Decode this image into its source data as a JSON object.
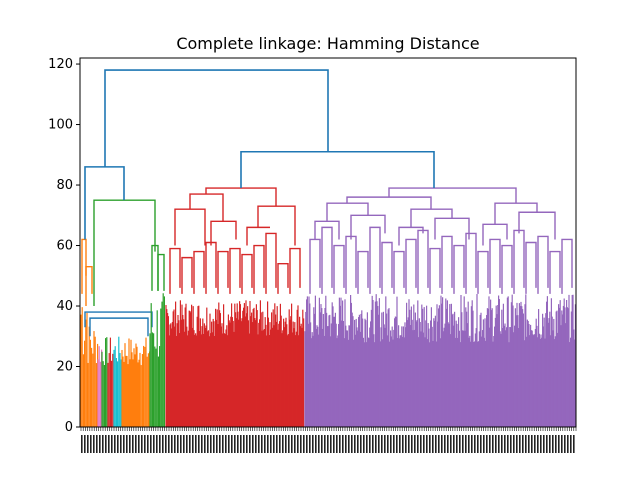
{
  "chart_data": {
    "type": "dendrogram",
    "title": "Complete linkage: Hamming Distance",
    "xlabel": "",
    "ylabel": "",
    "ylim": [
      0,
      122
    ],
    "yticks": [
      0,
      20,
      40,
      60,
      80,
      100,
      120
    ],
    "grid": false,
    "legend": "none",
    "colors": {
      "link": "#1f77b4",
      "orange": "#ff7f0e",
      "green": "#2ca02c",
      "red": "#d62728",
      "purple": "#9467bd",
      "cyan": "#17becf",
      "pink": "#e377c2"
    },
    "clusters": [
      {
        "color": "orange",
        "merge_height": 62,
        "leaf_range": [
          0.0,
          0.04
        ]
      },
      {
        "color": "green",
        "merge_height": 75,
        "leaf_range": [
          0.04,
          0.17
        ]
      },
      {
        "color": "red",
        "merge_height": 79,
        "leaf_range": [
          0.17,
          0.45
        ]
      },
      {
        "color": "purple",
        "merge_height": 79,
        "leaf_range": [
          0.45,
          1.0
        ]
      }
    ],
    "top_merges": [
      {
        "height": 118,
        "children": [
          "left_group",
          "right_group"
        ]
      },
      {
        "height": 91,
        "children": [
          "red",
          "purple"
        ]
      },
      {
        "height": 86,
        "children": [
          "orange",
          "green"
        ]
      }
    ]
  }
}
